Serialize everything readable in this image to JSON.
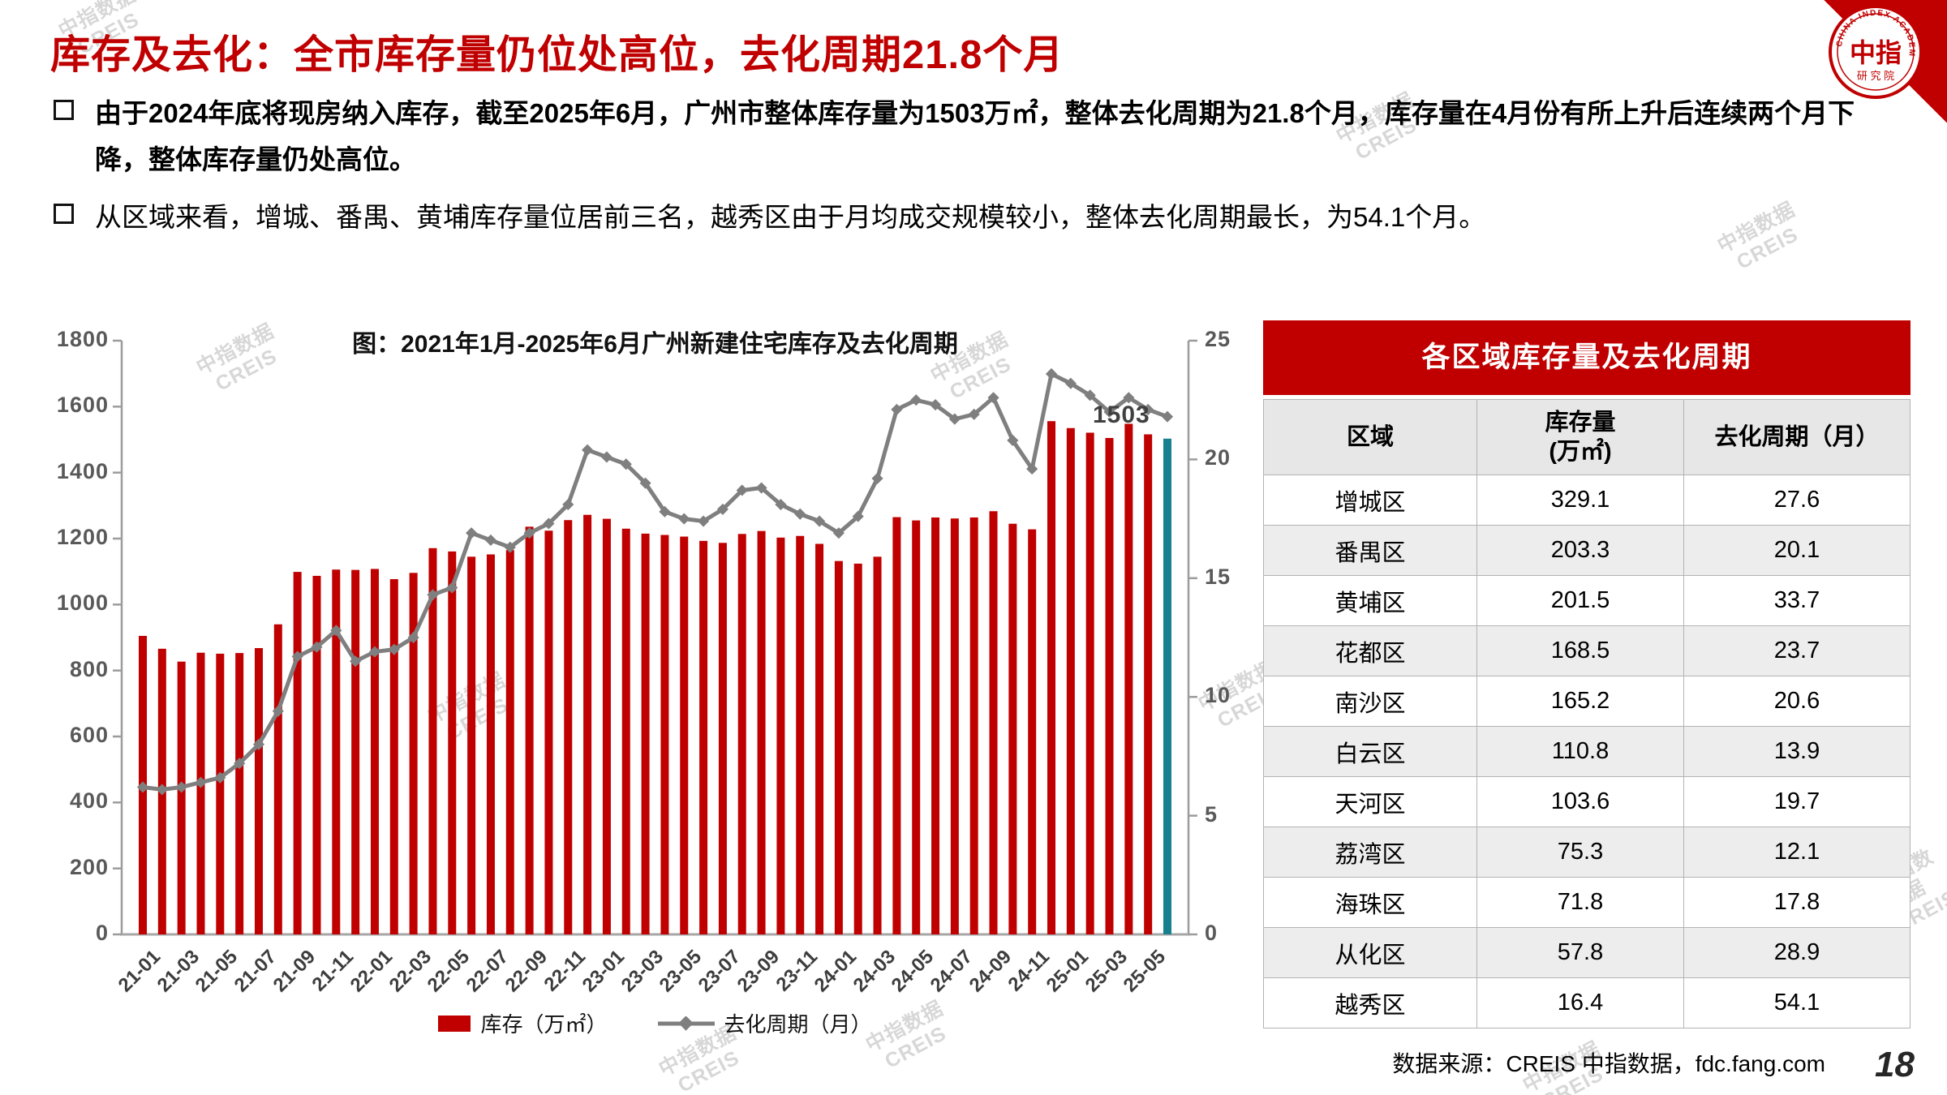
{
  "page": {
    "number": "18",
    "source": "数据来源：CREIS 中指数据，fdc.fang.com"
  },
  "header": {
    "title": "库存及去化：全市库存量仍位处高位，去化周期21.8个月"
  },
  "logo": {
    "cn": "中指",
    "sub": "研 究 院",
    "en": "CHINA INDEX ACADEMY"
  },
  "watermark": "中指数据\nCREIS",
  "bullets": [
    {
      "text": "由于2024年底将现房纳入库存，截至2025年6月，广州市整体库存量为1503万㎡，整体去化周期为21.8个月，库存量在4月份有所上升后连续两个月下降，整体库存量仍处高位。"
    },
    {
      "text": "从区域来看，增城、番禺、黄埔库存量位居前三名，越秀区由于月均成交规模较小，整体去化周期最长，为54.1个月。"
    }
  ],
  "chart_data": {
    "type": "bar",
    "title": "图：2021年1月-2025年6月广州新建住宅库存及去化周期",
    "x": [
      "21-01",
      "21-02",
      "21-03",
      "21-04",
      "21-05",
      "21-06",
      "21-07",
      "21-08",
      "21-09",
      "21-10",
      "21-11",
      "21-12",
      "22-01",
      "22-02",
      "22-03",
      "22-04",
      "22-05",
      "22-06",
      "22-07",
      "22-08",
      "22-09",
      "22-10",
      "22-11",
      "22-12",
      "23-01",
      "23-02",
      "23-03",
      "23-04",
      "23-05",
      "23-06",
      "23-07",
      "23-08",
      "23-09",
      "23-10",
      "23-11",
      "23-12",
      "24-01",
      "24-02",
      "24-03",
      "24-04",
      "24-05",
      "24-06",
      "24-07",
      "24-08",
      "24-09",
      "24-10",
      "24-11",
      "24-12",
      "25-01",
      "25-02",
      "25-03",
      "25-04",
      "25-05",
      "25-06"
    ],
    "x_tick_labels": [
      "21-01",
      "21-03",
      "21-05",
      "21-07",
      "21-09",
      "21-11",
      "22-01",
      "22-03",
      "22-05",
      "22-07",
      "22-09",
      "22-11",
      "23-01",
      "23-03",
      "23-05",
      "23-07",
      "23-09",
      "23-11",
      "24-01",
      "24-03",
      "24-05",
      "24-07",
      "24-09",
      "24-11",
      "25-01",
      "25-03",
      "25-05"
    ],
    "series": [
      {
        "name": "库存（万㎡）",
        "type": "bar",
        "axis": "left",
        "color": "#C00000",
        "values": [
          905,
          866,
          827,
          854,
          851,
          853,
          868,
          940,
          1099,
          1087,
          1106,
          1105,
          1108,
          1077,
          1096,
          1171,
          1161,
          1145,
          1152,
          1165,
          1236,
          1224,
          1256,
          1272,
          1260,
          1230,
          1215,
          1211,
          1206,
          1193,
          1187,
          1214,
          1223,
          1203,
          1208,
          1184,
          1132,
          1124,
          1145,
          1265,
          1255,
          1264,
          1261,
          1264,
          1283,
          1245,
          1228,
          1556,
          1535,
          1521,
          1505,
          1548,
          1516,
          1503
        ]
      },
      {
        "name": "去化周期（月）",
        "type": "line",
        "axis": "right",
        "color": "#7F7F7F",
        "values": [
          6.2,
          6.1,
          6.2,
          6.4,
          6.6,
          7.2,
          8.0,
          9.4,
          11.7,
          12.1,
          12.8,
          11.5,
          11.9,
          12.0,
          12.5,
          14.3,
          14.6,
          16.9,
          16.6,
          16.3,
          16.9,
          17.3,
          18.1,
          20.4,
          20.1,
          19.8,
          19.0,
          17.8,
          17.5,
          17.4,
          17.9,
          18.7,
          18.8,
          18.1,
          17.7,
          17.4,
          16.9,
          17.6,
          19.2,
          22.1,
          22.5,
          22.3,
          21.7,
          21.9,
          22.6,
          20.8,
          19.6,
          23.6,
          23.2,
          22.7,
          22.0,
          22.6,
          22.1,
          21.8
        ]
      }
    ],
    "ylim_left": [
      0,
      1800
    ],
    "y_ticks_left": [
      0,
      200,
      400,
      600,
      800,
      1000,
      1200,
      1400,
      1600,
      1800
    ],
    "ylim_right": [
      0,
      25
    ],
    "y_ticks_right": [
      0,
      5,
      10,
      15,
      20,
      25
    ],
    "highlight_last_bar": {
      "color": "#17808E",
      "label": "1503"
    },
    "legend_position": "bottom",
    "grid": false
  },
  "table": {
    "title": "各区域库存量及去化周期",
    "headers": [
      "区域",
      "库存量\n(万㎡)",
      "去化周期（月）"
    ],
    "rows": [
      [
        "增城区",
        "329.1",
        "27.6"
      ],
      [
        "番禺区",
        "203.3",
        "20.1"
      ],
      [
        "黄埔区",
        "201.5",
        "33.7"
      ],
      [
        "花都区",
        "168.5",
        "23.7"
      ],
      [
        "南沙区",
        "165.2",
        "20.6"
      ],
      [
        "白云区",
        "110.8",
        "13.9"
      ],
      [
        "天河区",
        "103.6",
        "19.7"
      ],
      [
        "荔湾区",
        "75.3",
        "12.1"
      ],
      [
        "海珠区",
        "71.8",
        "17.8"
      ],
      [
        "从化区",
        "57.8",
        "28.9"
      ],
      [
        "越秀区",
        "16.4",
        "54.1"
      ]
    ]
  }
}
